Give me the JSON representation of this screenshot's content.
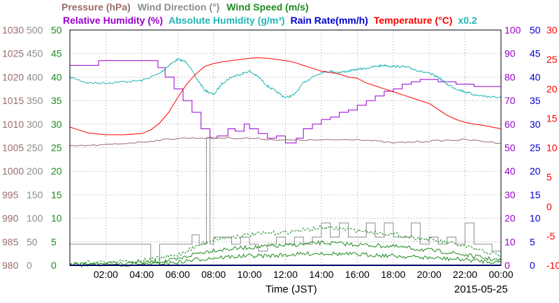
{
  "chart_data": {
    "type": "line",
    "title": "",
    "date": "2015-05-25",
    "xlabel": "Time (JST)",
    "x_ticks": [
      "02:00",
      "04:00",
      "06:00",
      "08:00",
      "10:00",
      "12:00",
      "14:00",
      "16:00",
      "18:00",
      "20:00",
      "22:00",
      "00:00"
    ],
    "xlim": [
      "00:00",
      "24:00"
    ],
    "grid": true,
    "legend_placement": "top (two-row header)",
    "legend_row1": [
      {
        "text": "Pressure (hPa)",
        "color": "#9c6b6b"
      },
      {
        "text": "Wind Direction (°)",
        "color": "#8c8c8c"
      },
      {
        "text": "Wind Speed (m/s)",
        "color": "#1f8a1f"
      }
    ],
    "legend_row2": [
      {
        "text": "Relative Humidity (%)",
        "color": "#9900cc"
      },
      {
        "text": "Absolute Humidity (g/m³)",
        "color": "#22b5b5"
      },
      {
        "text": "Rain Rate(mm/h)",
        "color": "#0000cc"
      },
      {
        "text": "Temperature (°C)",
        "color": "#ff0000"
      },
      {
        "text": "x0.2",
        "color": "#22b5b5"
      }
    ],
    "axes": [
      {
        "id": "pressure",
        "side": "left",
        "color": "#9c6b6b",
        "ylim": [
          980,
          1030
        ],
        "ticks": [
          "1030",
          "1025",
          "1020",
          "1015",
          "1010",
          "1005",
          "1000",
          "995",
          "990",
          "985",
          "980"
        ]
      },
      {
        "id": "wind_dir",
        "side": "left",
        "color": "#8c8c8c",
        "ylim": [
          0,
          500
        ],
        "ticks": [
          "500",
          "450",
          "400",
          "350",
          "300",
          "250",
          "200",
          "150",
          "100",
          "50",
          "0"
        ]
      },
      {
        "id": "wind_speed",
        "side": "left",
        "color": "#1f8a1f",
        "ylim": [
          0,
          50
        ],
        "ticks": [
          "50",
          "45",
          "40",
          "35",
          "30",
          "25",
          "20",
          "15",
          "10",
          "5",
          "0"
        ]
      },
      {
        "id": "humidity",
        "side": "right",
        "color": "#9900cc",
        "ylim": [
          0,
          100
        ],
        "ticks": [
          "100",
          "90",
          "80",
          "70",
          "60",
          "50",
          "40",
          "30",
          "20",
          "10",
          "0"
        ]
      },
      {
        "id": "rain",
        "side": "right",
        "color": "#0000cc",
        "ylim": [
          0,
          50
        ],
        "ticks": [
          "50",
          "45",
          "40",
          "35",
          "30",
          "25",
          "20",
          "15",
          "10",
          "5",
          "0"
        ]
      },
      {
        "id": "temperature",
        "side": "right",
        "color": "#ff0000",
        "ylim": [
          -10,
          30
        ],
        "ticks": [
          "30",
          "25",
          "20",
          "15",
          "10",
          "5",
          "0",
          "-5",
          "-10"
        ]
      }
    ],
    "series": [
      {
        "name": "Relative Humidity (%)",
        "axis": "humidity",
        "color": "#9900cc",
        "style": "step",
        "x": [
          0,
          1.2,
          1.6,
          4.5,
          4.9,
          5.3,
          5.8,
          6.3,
          6.8,
          7.3,
          7.8,
          8.2,
          8.8,
          9.2,
          9.7,
          10.0,
          10.5,
          11.0,
          11.5,
          12.0,
          12.6,
          13.0,
          13.5,
          14.0,
          14.5,
          15.0,
          15.5,
          16.0,
          16.5,
          17.0,
          17.5,
          18.0,
          18.5,
          19.0,
          19.5,
          20.0,
          20.5,
          21.0,
          21.5,
          22.0,
          22.5,
          23.0,
          23.5,
          24.0
        ],
        "y": [
          85,
          85,
          87,
          87,
          84,
          80,
          75,
          70,
          65,
          58,
          54,
          55,
          58,
          57,
          60,
          58,
          56,
          54,
          55,
          52,
          54,
          58,
          60,
          62,
          63,
          65,
          66,
          68,
          70,
          72,
          74,
          75,
          77,
          78,
          79,
          79,
          78,
          78,
          77,
          77,
          76,
          76,
          76,
          76
        ]
      },
      {
        "name": "Absolute Humidity (g/m³)",
        "axis": "temperature",
        "color": "#22b5b5",
        "style": "noisy",
        "x": [
          0,
          1,
          2,
          3,
          4,
          5,
          5.5,
          6,
          6.5,
          7,
          7.5,
          8,
          8.5,
          9,
          9.5,
          10,
          10.5,
          11,
          11.5,
          12,
          12.5,
          13,
          13.5,
          14,
          14.5,
          15,
          15.5,
          16,
          16.5,
          17,
          17.5,
          18,
          18.5,
          19,
          19.5,
          20,
          20.5,
          21,
          21.5,
          22,
          22.5,
          23,
          23.5,
          24
        ],
        "y": [
          22.0,
          21.0,
          21.0,
          21.2,
          21.4,
          22.6,
          24.0,
          25.0,
          24.6,
          22.0,
          19.8,
          19.0,
          21.0,
          22.0,
          22.5,
          23.0,
          22.0,
          20.5,
          19.5,
          18.5,
          19.0,
          21.0,
          22.0,
          22.8,
          23.0,
          22.8,
          23.0,
          23.3,
          23.5,
          23.8,
          24.0,
          23.8,
          23.8,
          23.5,
          23.0,
          22.6,
          22.0,
          20.8,
          20.0,
          19.5,
          19.0,
          18.8,
          18.6,
          18.5
        ]
      },
      {
        "name": "Temperature (°C)",
        "axis": "temperature",
        "color": "#ff0000",
        "style": "line",
        "x": [
          0,
          0.5,
          1,
          2,
          3,
          4,
          4.5,
          5,
          5.5,
          6,
          6.5,
          7,
          7.5,
          8,
          8.5,
          9,
          9.5,
          10,
          10.5,
          11,
          11.5,
          12,
          12.5,
          13,
          13.5,
          14,
          14.5,
          15,
          15.5,
          16,
          16.5,
          17,
          17.5,
          18,
          18.5,
          19,
          19.5,
          20,
          20.5,
          21,
          21.5,
          22,
          22.5,
          23,
          23.5,
          24
        ],
        "y": [
          13.5,
          13.0,
          12.5,
          12.2,
          12.2,
          12.4,
          13.0,
          14.2,
          16.0,
          18.5,
          20.8,
          22.5,
          23.8,
          24.3,
          24.6,
          24.8,
          25.0,
          25.2,
          25.3,
          25.2,
          25.0,
          24.8,
          24.5,
          24.0,
          23.5,
          23.0,
          22.8,
          22.5,
          22.0,
          21.8,
          21.0,
          20.5,
          20.0,
          19.5,
          19.0,
          18.5,
          18.0,
          17.5,
          16.5,
          15.5,
          14.8,
          14.3,
          14.0,
          13.8,
          13.5,
          13.2
        ]
      },
      {
        "name": "Pressure (hPa)",
        "axis": "pressure",
        "color": "#9c6b6b",
        "style": "noisy",
        "x": [
          0,
          2,
          4,
          6,
          8,
          10,
          12,
          14,
          16,
          18,
          20,
          22,
          24
        ],
        "y": [
          1005.3,
          1005.6,
          1006.2,
          1007.0,
          1007.1,
          1007.0,
          1006.6,
          1006.6,
          1006.8,
          1006.0,
          1006.4,
          1006.7,
          1006.0
        ]
      },
      {
        "name": "Wind Direction (°)",
        "axis": "wind_dir",
        "color": "#8c8c8c",
        "style": "step",
        "x": [
          0,
          4.3,
          4.5,
          5.0,
          5.5,
          6.0,
          6.8,
          7.2,
          7.55,
          7.6,
          7.75,
          7.8,
          8.0,
          8.5,
          9.0,
          9.5,
          10.0,
          10.5,
          11.0,
          11.5,
          12.0,
          12.5,
          13.0,
          13.5,
          14.0,
          14.5,
          15.0,
          15.5,
          16.0,
          16.5,
          17.0,
          17.5,
          18.0,
          18.5,
          19.0,
          19.5,
          20.0,
          20.5,
          21.0,
          21.5,
          22.0,
          22.5,
          23.0,
          23.5,
          24.0
        ],
        "y": [
          45,
          45,
          0,
          45,
          45,
          45,
          65,
          45,
          45,
          270,
          270,
          45,
          60,
          60,
          45,
          60,
          45,
          30,
          45,
          60,
          45,
          60,
          45,
          60,
          90,
          60,
          90,
          60,
          60,
          90,
          60,
          90,
          60,
          60,
          90,
          45,
          60,
          45,
          60,
          45,
          90,
          45,
          45,
          30,
          20
        ]
      },
      {
        "name": "Wind Speed (m/s)",
        "axis": "wind_speed",
        "color": "#1f8a1f",
        "style": "noisy",
        "x": [
          0,
          2,
          4,
          5,
          6,
          7,
          8,
          9,
          10,
          11,
          12,
          13,
          14,
          15,
          16,
          17,
          18,
          19,
          20,
          21,
          22,
          23,
          24
        ],
        "y": [
          0.2,
          0.4,
          0.5,
          0.8,
          1.2,
          2.5,
          3.2,
          3.5,
          3.8,
          4.0,
          4.2,
          4.5,
          4.8,
          4.6,
          4.4,
          4.2,
          4.0,
          3.6,
          3.2,
          2.8,
          2.2,
          1.6,
          1.0
        ]
      },
      {
        "name": "Wind Speed (m/s)",
        "axis": "wind_speed",
        "color": "#1f8a1f",
        "style": "noisy",
        "x": [
          0,
          2,
          4,
          5,
          6,
          7,
          8,
          9,
          10,
          11,
          12,
          13,
          14,
          15,
          16,
          17,
          18,
          19,
          20,
          21,
          22,
          23,
          24
        ],
        "y": [
          0.1,
          0.2,
          0.2,
          0.4,
          0.6,
          1.2,
          1.6,
          1.8,
          2.0,
          2.0,
          2.2,
          2.4,
          2.6,
          2.4,
          2.3,
          2.2,
          2.0,
          1.8,
          1.6,
          1.4,
          1.2,
          0.9,
          0.6
        ]
      },
      {
        "name": "Wind Speed (m/s)",
        "axis": "wind_speed",
        "color": "#1f8a1f",
        "style": "dash",
        "x": [
          0,
          2,
          4,
          5,
          6,
          7,
          8,
          9,
          10,
          11,
          12,
          13,
          14,
          15,
          16,
          17,
          18,
          19,
          20,
          21,
          22,
          23,
          24
        ],
        "y": [
          0.5,
          0.8,
          1.0,
          1.5,
          2.2,
          4.0,
          5.5,
          6.0,
          6.5,
          6.8,
          7.0,
          7.5,
          8.0,
          7.8,
          7.4,
          7.0,
          6.6,
          6.0,
          5.5,
          4.8,
          4.0,
          3.0,
          2.0
        ]
      },
      {
        "name": "Rain Rate(mm/h)",
        "axis": "rain",
        "color": "#0000cc",
        "style": "line",
        "x": [
          0,
          24
        ],
        "y": [
          0,
          0
        ]
      }
    ]
  }
}
